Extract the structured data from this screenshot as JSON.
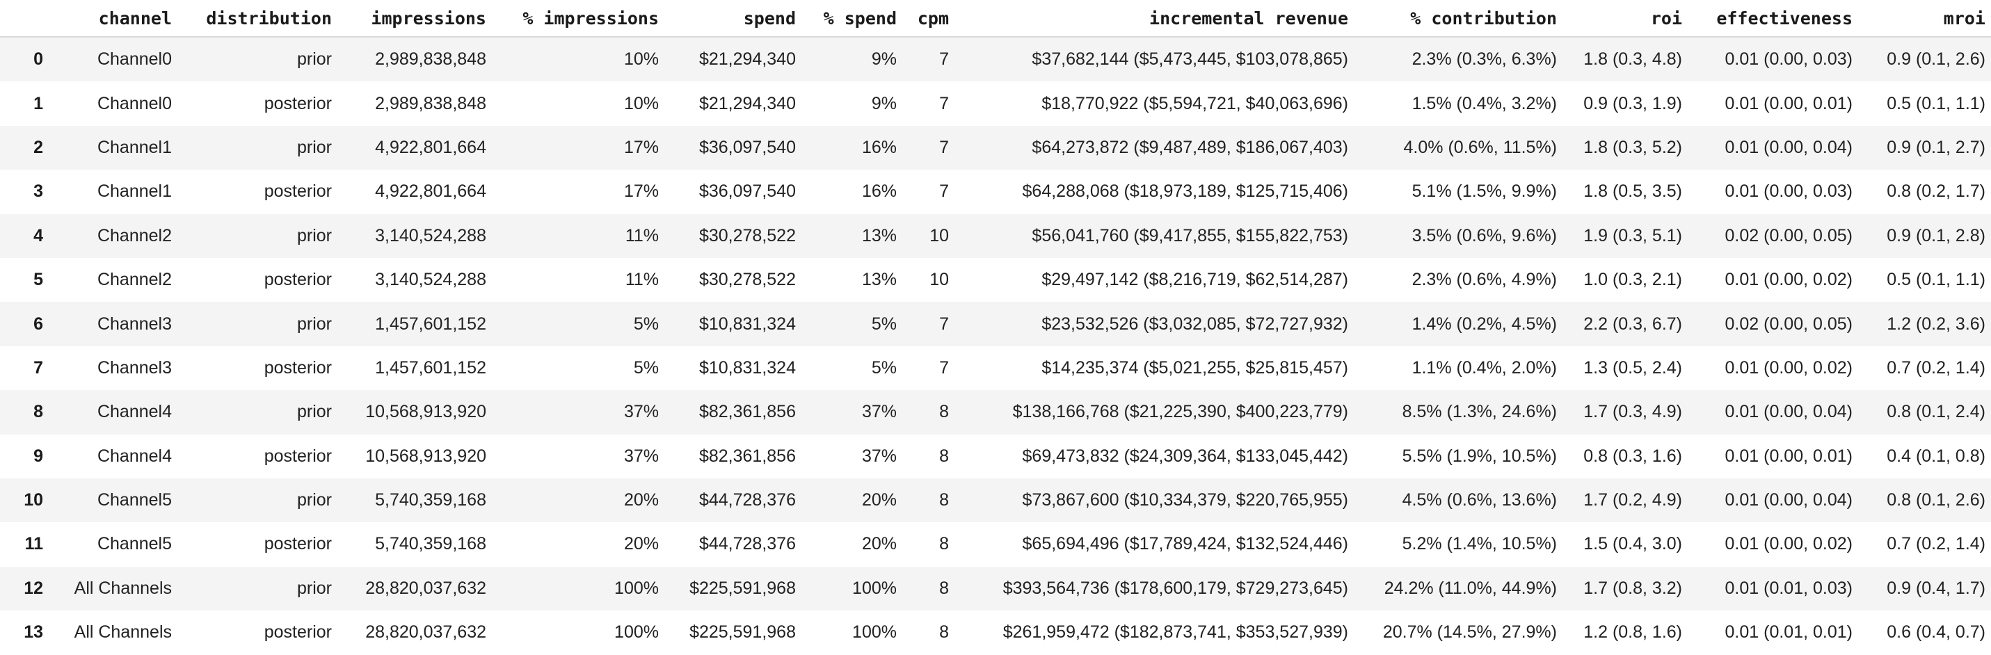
{
  "colors": {
    "page_background": "#ffffff",
    "stripe_row_background": "#f4f4f4",
    "plain_row_background": "#ffffff",
    "header_divider": "#d9d9d9",
    "header_text": "#1a1a1a",
    "body_text": "#222222"
  },
  "chart_data": {
    "type": "table",
    "columns": [
      "",
      "channel",
      "distribution",
      "impressions",
      "% impressions",
      "spend",
      "% spend",
      "cpm",
      "incremental revenue",
      "% contribution",
      "roi",
      "effectiveness",
      "mroi"
    ],
    "rows": [
      [
        "0",
        "Channel0",
        "prior",
        "2,989,838,848",
        "10%",
        "$21,294,340",
        "9%",
        "7",
        "$37,682,144 ($5,473,445, $103,078,865)",
        "2.3% (0.3%, 6.3%)",
        "1.8 (0.3, 4.8)",
        "0.01 (0.00, 0.03)",
        "0.9 (0.1, 2.6)"
      ],
      [
        "1",
        "Channel0",
        "posterior",
        "2,989,838,848",
        "10%",
        "$21,294,340",
        "9%",
        "7",
        "$18,770,922 ($5,594,721, $40,063,696)",
        "1.5% (0.4%, 3.2%)",
        "0.9 (0.3, 1.9)",
        "0.01 (0.00, 0.01)",
        "0.5 (0.1, 1.1)"
      ],
      [
        "2",
        "Channel1",
        "prior",
        "4,922,801,664",
        "17%",
        "$36,097,540",
        "16%",
        "7",
        "$64,273,872 ($9,487,489, $186,067,403)",
        "4.0% (0.6%, 11.5%)",
        "1.8 (0.3, 5.2)",
        "0.01 (0.00, 0.04)",
        "0.9 (0.1, 2.7)"
      ],
      [
        "3",
        "Channel1",
        "posterior",
        "4,922,801,664",
        "17%",
        "$36,097,540",
        "16%",
        "7",
        "$64,288,068 ($18,973,189, $125,715,406)",
        "5.1% (1.5%, 9.9%)",
        "1.8 (0.5, 3.5)",
        "0.01 (0.00, 0.03)",
        "0.8 (0.2, 1.7)"
      ],
      [
        "4",
        "Channel2",
        "prior",
        "3,140,524,288",
        "11%",
        "$30,278,522",
        "13%",
        "10",
        "$56,041,760 ($9,417,855, $155,822,753)",
        "3.5% (0.6%, 9.6%)",
        "1.9 (0.3, 5.1)",
        "0.02 (0.00, 0.05)",
        "0.9 (0.1, 2.8)"
      ],
      [
        "5",
        "Channel2",
        "posterior",
        "3,140,524,288",
        "11%",
        "$30,278,522",
        "13%",
        "10",
        "$29,497,142 ($8,216,719, $62,514,287)",
        "2.3% (0.6%, 4.9%)",
        "1.0 (0.3, 2.1)",
        "0.01 (0.00, 0.02)",
        "0.5 (0.1, 1.1)"
      ],
      [
        "6",
        "Channel3",
        "prior",
        "1,457,601,152",
        "5%",
        "$10,831,324",
        "5%",
        "7",
        "$23,532,526 ($3,032,085, $72,727,932)",
        "1.4% (0.2%, 4.5%)",
        "2.2 (0.3, 6.7)",
        "0.02 (0.00, 0.05)",
        "1.2 (0.2, 3.6)"
      ],
      [
        "7",
        "Channel3",
        "posterior",
        "1,457,601,152",
        "5%",
        "$10,831,324",
        "5%",
        "7",
        "$14,235,374 ($5,021,255, $25,815,457)",
        "1.1% (0.4%, 2.0%)",
        "1.3 (0.5, 2.4)",
        "0.01 (0.00, 0.02)",
        "0.7 (0.2, 1.4)"
      ],
      [
        "8",
        "Channel4",
        "prior",
        "10,568,913,920",
        "37%",
        "$82,361,856",
        "37%",
        "8",
        "$138,166,768 ($21,225,390, $400,223,779)",
        "8.5% (1.3%, 24.6%)",
        "1.7 (0.3, 4.9)",
        "0.01 (0.00, 0.04)",
        "0.8 (0.1, 2.4)"
      ],
      [
        "9",
        "Channel4",
        "posterior",
        "10,568,913,920",
        "37%",
        "$82,361,856",
        "37%",
        "8",
        "$69,473,832 ($24,309,364, $133,045,442)",
        "5.5% (1.9%, 10.5%)",
        "0.8 (0.3, 1.6)",
        "0.01 (0.00, 0.01)",
        "0.4 (0.1, 0.8)"
      ],
      [
        "10",
        "Channel5",
        "prior",
        "5,740,359,168",
        "20%",
        "$44,728,376",
        "20%",
        "8",
        "$73,867,600 ($10,334,379, $220,765,955)",
        "4.5% (0.6%, 13.6%)",
        "1.7 (0.2, 4.9)",
        "0.01 (0.00, 0.04)",
        "0.8 (0.1, 2.6)"
      ],
      [
        "11",
        "Channel5",
        "posterior",
        "5,740,359,168",
        "20%",
        "$44,728,376",
        "20%",
        "8",
        "$65,694,496 ($17,789,424, $132,524,446)",
        "5.2% (1.4%, 10.5%)",
        "1.5 (0.4, 3.0)",
        "0.01 (0.00, 0.02)",
        "0.7 (0.2, 1.4)"
      ],
      [
        "12",
        "All Channels",
        "prior",
        "28,820,037,632",
        "100%",
        "$225,591,968",
        "100%",
        "8",
        "$393,564,736 ($178,600,179, $729,273,645)",
        "24.2% (11.0%, 44.9%)",
        "1.7 (0.8, 3.2)",
        "0.01 (0.01, 0.03)",
        "0.9 (0.4, 1.7)"
      ],
      [
        "13",
        "All Channels",
        "posterior",
        "28,820,037,632",
        "100%",
        "$225,591,968",
        "100%",
        "8",
        "$261,959,472 ($182,873,741, $353,527,939)",
        "20.7% (14.5%, 27.9%)",
        "1.2 (0.8, 1.6)",
        "0.01 (0.01, 0.01)",
        "0.6 (0.4, 0.7)"
      ]
    ]
  }
}
